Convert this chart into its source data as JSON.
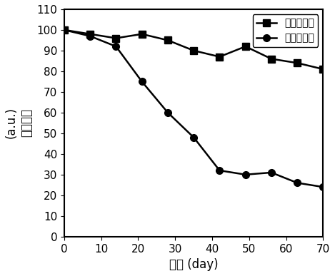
{
  "series1_label": "配体交换后",
  "series2_label": "未配体交换",
  "series1_x": [
    0,
    7,
    14,
    21,
    28,
    35,
    42,
    49,
    56,
    63,
    70
  ],
  "series1_y": [
    100,
    98,
    96,
    98,
    95,
    90,
    87,
    92,
    86,
    84,
    81
  ],
  "series2_x": [
    0,
    7,
    14,
    21,
    28,
    35,
    42,
    49,
    56,
    63,
    70
  ],
  "series2_y": [
    100,
    97,
    92,
    75,
    60,
    48,
    32,
    30,
    31,
    26,
    24
  ],
  "xlabel": "时间 (day)",
  "ylabel_line1": "(a.u.)",
  "ylabel_line2": "相对亮度",
  "xlim": [
    0,
    70
  ],
  "ylim": [
    0,
    110
  ],
  "xticks": [
    0,
    10,
    20,
    30,
    40,
    50,
    60,
    70
  ],
  "yticks": [
    0,
    10,
    20,
    30,
    40,
    50,
    60,
    70,
    80,
    90,
    100,
    110
  ],
  "line_color": "#000000",
  "marker_square": "s",
  "marker_circle": "o",
  "markersize": 7,
  "linewidth": 1.8,
  "label_fontsize": 12,
  "tick_fontsize": 11,
  "legend_fontsize": 10
}
